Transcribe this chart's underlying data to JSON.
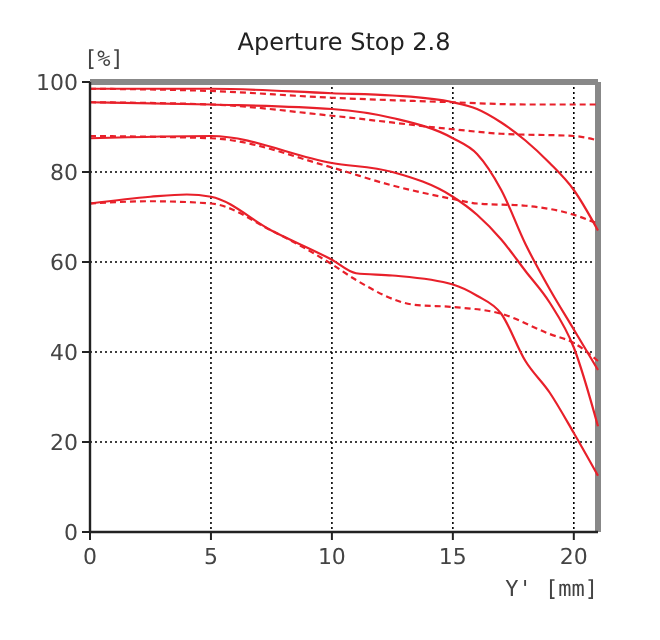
{
  "chart_data": {
    "type": "line",
    "title": "Aperture Stop 2.8",
    "xlabel": "Y' [mm]",
    "ylabel": "[%]",
    "xlim": [
      0,
      21
    ],
    "ylim": [
      0,
      100
    ],
    "xticks": [
      0,
      5,
      10,
      15,
      20
    ],
    "yticks": [
      0,
      20,
      40,
      60,
      80,
      100
    ],
    "grid": true,
    "series": [
      {
        "color": "#e8202a",
        "line_style": "solid",
        "x": [
          0,
          5,
          10,
          12.5,
          15,
          16,
          17,
          18,
          19,
          20,
          21
        ],
        "values": [
          98.5,
          98.5,
          97.5,
          97,
          95.5,
          94,
          91,
          87,
          82,
          76,
          67
        ]
      },
      {
        "color": "#e8202a",
        "line_style": "dashed",
        "x": [
          0,
          5,
          10,
          15,
          18,
          21
        ],
        "values": [
          98.5,
          98,
          96.5,
          95.5,
          95,
          95
        ]
      },
      {
        "color": "#e8202a",
        "line_style": "solid",
        "x": [
          0,
          5,
          10,
          12.5,
          15,
          16,
          17,
          18,
          19,
          20,
          21
        ],
        "values": [
          95.5,
          95,
          94,
          92,
          87.5,
          84,
          76,
          64,
          54,
          45,
          36
        ]
      },
      {
        "color": "#e8202a",
        "line_style": "dashed",
        "x": [
          0,
          5,
          10,
          15,
          17,
          20,
          21
        ],
        "values": [
          95.5,
          95,
          92.5,
          89.5,
          88.5,
          88,
          87
        ]
      },
      {
        "color": "#e8202a",
        "line_style": "solid",
        "x": [
          0,
          5,
          10,
          12.5,
          15,
          16,
          17,
          18,
          19,
          20,
          21
        ],
        "values": [
          87.5,
          88,
          82,
          80,
          74.5,
          70.5,
          65,
          58,
          51,
          41,
          23.5
        ]
      },
      {
        "color": "#e8202a",
        "line_style": "dashed",
        "x": [
          0,
          5,
          10,
          12.5,
          15,
          16,
          18,
          20,
          21
        ],
        "values": [
          88,
          87.5,
          81,
          77,
          74,
          73,
          72.5,
          70.5,
          68.5
        ]
      },
      {
        "color": "#e8202a",
        "line_style": "solid",
        "x": [
          0,
          2.5,
          4,
          5,
          7.5,
          10,
          11,
          12.5,
          15,
          16,
          17,
          18,
          19,
          20,
          21
        ],
        "values": [
          73,
          74.5,
          75,
          74.5,
          67,
          60.5,
          57.5,
          57,
          55,
          52.5,
          48.5,
          38,
          31,
          22,
          12.5
        ]
      },
      {
        "color": "#e8202a",
        "line_style": "dashed",
        "x": [
          0,
          2.5,
          5,
          7.5,
          10,
          11,
          13.4,
          15,
          17,
          19,
          20,
          21
        ],
        "values": [
          73,
          73.5,
          73,
          67,
          59.5,
          56,
          50.5,
          50,
          48.5,
          44,
          42,
          38
        ]
      }
    ]
  }
}
